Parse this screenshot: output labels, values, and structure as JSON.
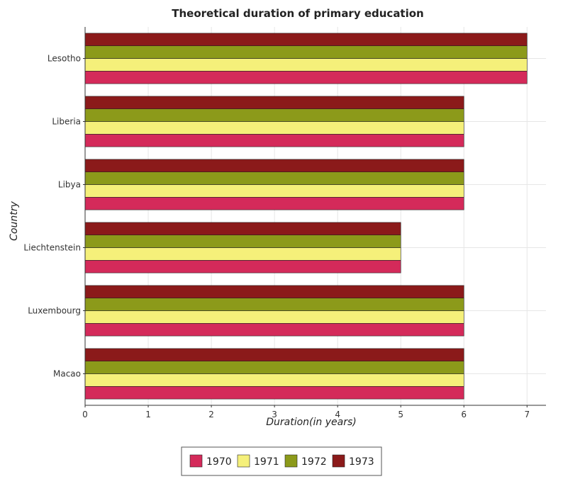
{
  "chart_data": {
    "type": "bar",
    "orientation": "horizontal",
    "title": "Theoretical duration of primary education",
    "xlabel": "Duration(in years)",
    "ylabel": "Country",
    "xlim": [
      0,
      7.3
    ],
    "xticks": [
      0,
      1,
      2,
      3,
      4,
      5,
      6,
      7
    ],
    "grid": true,
    "legend_position": "bottom-center",
    "categories": [
      "Lesotho",
      "Liberia",
      "Libya",
      "Liechtenstein",
      "Luxembourg",
      "Macao"
    ],
    "series": [
      {
        "name": "1970",
        "color": "#d42a5a",
        "values": [
          7,
          6,
          6,
          5,
          6,
          6
        ]
      },
      {
        "name": "1971",
        "color": "#f5f07a",
        "values": [
          7,
          6,
          6,
          5,
          6,
          6
        ]
      },
      {
        "name": "1972",
        "color": "#8c9a1a",
        "values": [
          7,
          6,
          6,
          5,
          6,
          6
        ]
      },
      {
        "name": "1973",
        "color": "#8b1a1a",
        "values": [
          7,
          6,
          6,
          5,
          6,
          6
        ]
      }
    ]
  }
}
